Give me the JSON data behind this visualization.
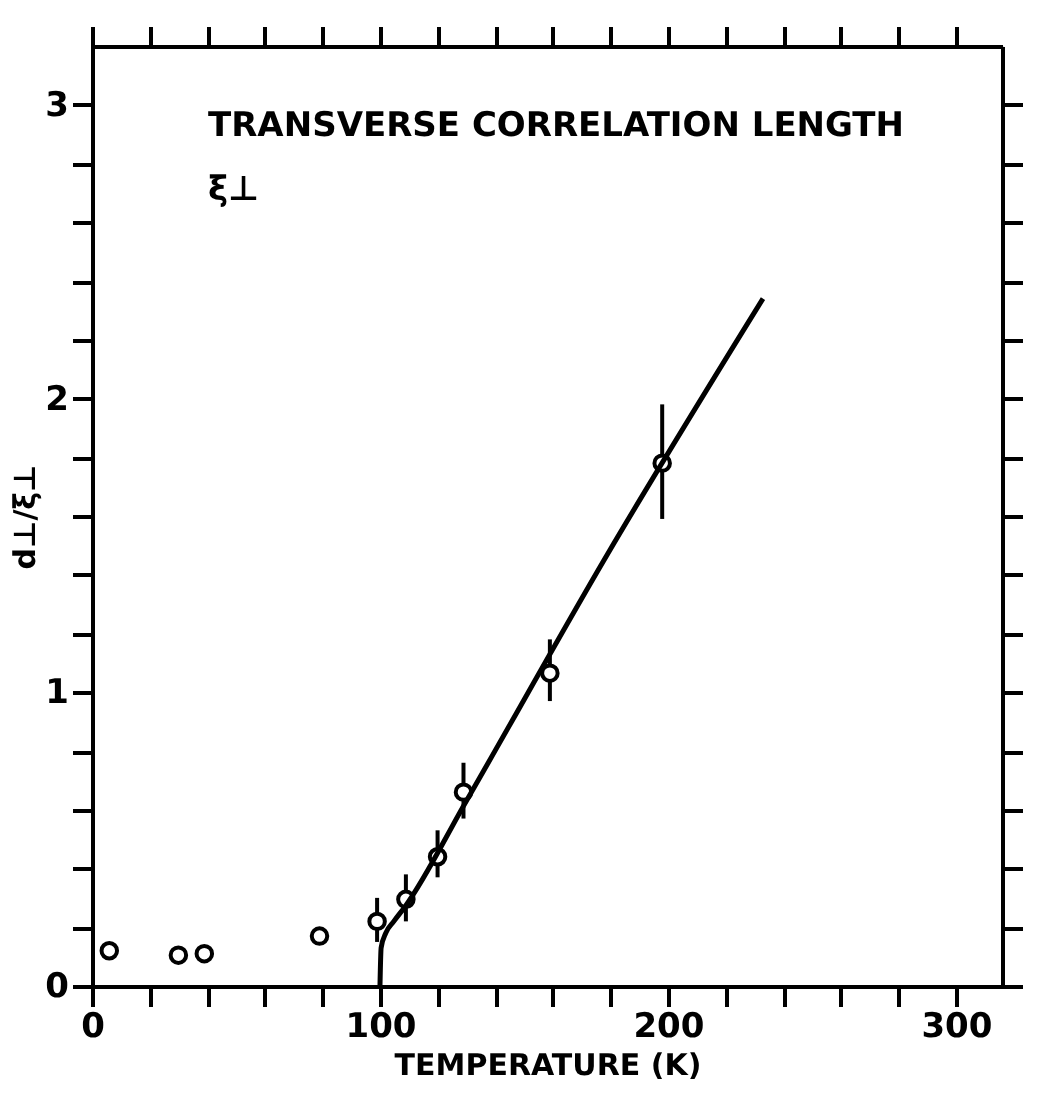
{
  "chart_data": {
    "type": "scatter",
    "xlabel": "TEMPERATURE (K)",
    "ylabel": "d⊥/ξ⊥",
    "annotations": [
      "TRANSVERSE CORRELATION LENGTH",
      "ξ⊥"
    ],
    "xlim": [
      0,
      316
    ],
    "ylim": [
      0,
      3.2
    ],
    "xticks": [
      0,
      {
        "value": 20,
        "label": null
      },
      {
        "value": 40,
        "label": null
      },
      {
        "value": 60,
        "label": null
      },
      {
        "value": 80,
        "label": null
      },
      100,
      {
        "value": 120,
        "label": null
      },
      {
        "value": 140,
        "label": null
      },
      {
        "value": 160,
        "label": null
      },
      {
        "value": 180,
        "label": null
      },
      200,
      {
        "value": 220,
        "label": null
      },
      {
        "value": 240,
        "label": null
      },
      {
        "value": 260,
        "label": null
      },
      {
        "value": 280,
        "label": null
      },
      300
    ],
    "yticks": [
      0,
      {
        "value": 0.2,
        "label": null
      },
      {
        "value": 0.4,
        "label": null
      },
      {
        "value": 0.6,
        "label": null
      },
      {
        "value": 0.8,
        "label": null
      },
      1,
      {
        "value": 1.2,
        "label": null
      },
      {
        "value": 1.4,
        "label": null
      },
      {
        "value": 1.6,
        "label": null
      },
      {
        "value": 1.8,
        "label": null
      },
      2,
      {
        "value": 2.2,
        "label": null
      },
      {
        "value": 2.4,
        "label": null
      },
      {
        "value": 2.6,
        "label": null
      },
      {
        "value": 2.8,
        "label": null
      },
      3
    ],
    "grid": false,
    "series": [
      {
        "color": "#000000",
        "marker": "circle",
        "x": [
          6,
          30,
          39,
          79,
          99,
          109,
          120,
          129,
          159,
          198
        ],
        "values": [
          0.12,
          0.105,
          0.11,
          0.17,
          0.22,
          0.295,
          0.44,
          0.66,
          1.065,
          1.78
        ],
        "errors": [
          null,
          null,
          null,
          null,
          [
            0.15,
            0.3
          ],
          [
            0.22,
            0.38
          ],
          [
            0.37,
            0.53
          ],
          [
            0.57,
            0.76
          ],
          [
            0.97,
            1.18
          ],
          [
            1.59,
            1.98
          ]
        ]
      },
      {
        "type": "line",
        "color": "#000000",
        "marker": "none",
        "line_style": "solid",
        "x": [
          100,
          100.4,
          102,
          104.8,
          108.7,
          130,
          179,
          233
        ],
        "values": [
          0,
          0.13,
          0.18,
          0.22,
          0.27,
          0.63,
          1.47,
          2.34
        ]
      }
    ]
  }
}
